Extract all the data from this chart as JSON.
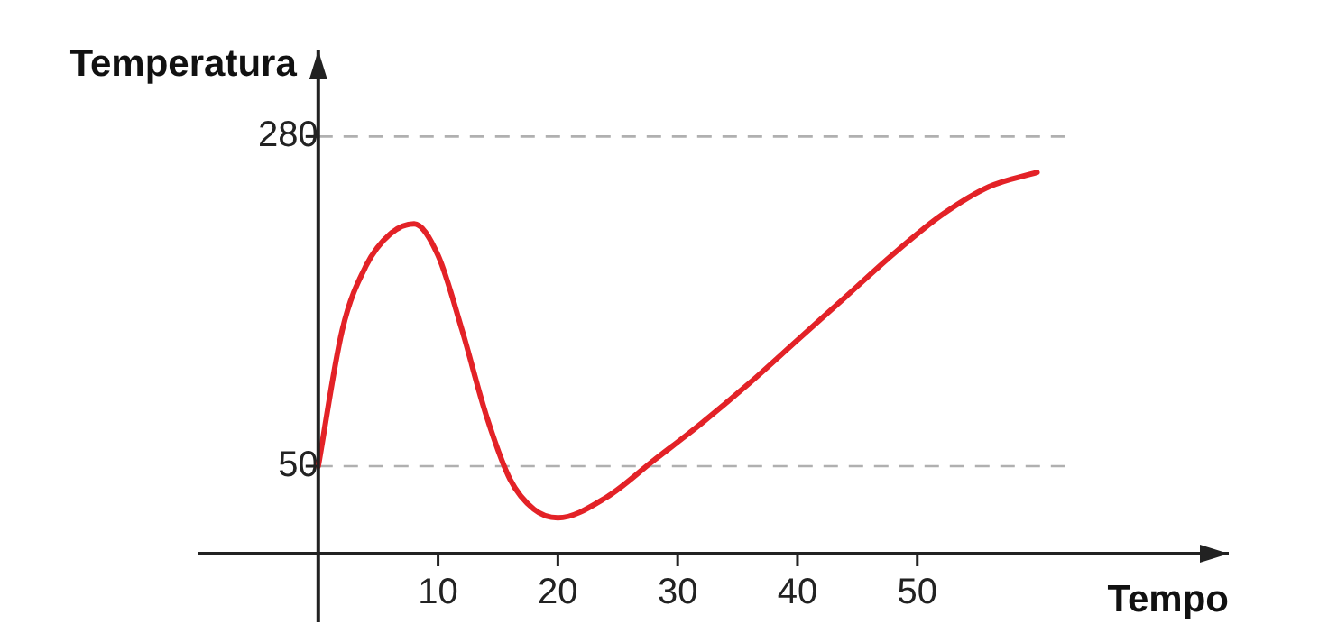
{
  "chart_data": {
    "type": "line",
    "xlabel": "Tempo",
    "ylabel": "Temperatura",
    "x": [
      0,
      2,
      4,
      6,
      8,
      10,
      12,
      14,
      16,
      18,
      20,
      24,
      28,
      32,
      36,
      40,
      44,
      48,
      52,
      56,
      60
    ],
    "series": [
      {
        "color": "#e32227",
        "values": [
          50,
          145,
          190,
          212,
          219,
          197,
          145,
          86,
          41,
          20,
          14,
          28,
          54,
          80,
          108,
          138,
          168,
          198,
          225,
          245,
          255
        ]
      }
    ],
    "xlim": [
      -10,
      76
    ],
    "ylim": [
      -11,
      340
    ],
    "xticks": [
      10,
      20,
      30,
      40,
      50
    ],
    "yticks": [
      50,
      280
    ],
    "ref_lines": [
      {
        "axis": "y",
        "value": 50,
        "color": "#b0b0b0",
        "line_style": "dashed"
      },
      {
        "axis": "y",
        "value": 280,
        "color": "#b0b0b0",
        "line_style": "dashed"
      }
    ],
    "grid": false,
    "legend": false,
    "marker": "none",
    "line_style": "solid"
  }
}
